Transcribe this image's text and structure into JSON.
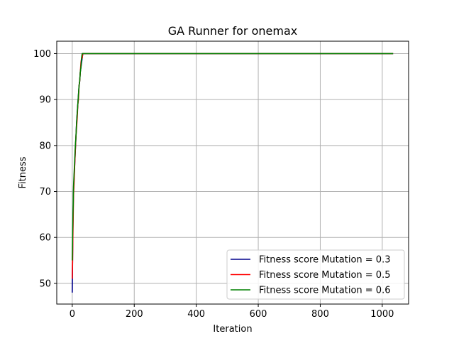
{
  "chart_data": {
    "type": "line",
    "title": "GA Runner for onemax",
    "xlabel": "Iteration",
    "ylabel": "Fitness",
    "xlim": [
      -50,
      1085
    ],
    "ylim": [
      45.5,
      102.7
    ],
    "xticks": [
      0,
      200,
      400,
      600,
      800,
      1000
    ],
    "yticks": [
      50,
      60,
      70,
      80,
      90,
      100
    ],
    "xtick_labels": [
      "0",
      "200",
      "400",
      "600",
      "800",
      "1000"
    ],
    "ytick_labels": [
      "50",
      "60",
      "70",
      "80",
      "90",
      "100"
    ],
    "grid": true,
    "legend_position": "lower-right",
    "series": [
      {
        "name": "Fitness score Mutation = 0.3",
        "color": "#00008b",
        "x": [
          0,
          1,
          2,
          3,
          4,
          6,
          8,
          10,
          12,
          14,
          16,
          18,
          20,
          22,
          24,
          26,
          28,
          30,
          32,
          34,
          1035
        ],
        "y": [
          48,
          55,
          62,
          66,
          70,
          73,
          76,
          79,
          82,
          85,
          87,
          89,
          91,
          93,
          94,
          96,
          97,
          98,
          99,
          100,
          100
        ]
      },
      {
        "name": "Fitness score Mutation = 0.5",
        "color": "#ff0000",
        "x": [
          0,
          1,
          2,
          3,
          4,
          6,
          8,
          10,
          12,
          14,
          16,
          18,
          20,
          22,
          24,
          26,
          28,
          30,
          32,
          34,
          1035
        ],
        "y": [
          51,
          55,
          60,
          64,
          69,
          72,
          76,
          79,
          82,
          84,
          86,
          89,
          90,
          93,
          94,
          96,
          98,
          99,
          99,
          100,
          100
        ]
      },
      {
        "name": "Fitness score Mutation = 0.6",
        "color": "#008000",
        "x": [
          0,
          1,
          2,
          3,
          4,
          6,
          8,
          10,
          12,
          14,
          16,
          18,
          20,
          22,
          24,
          26,
          28,
          30,
          32,
          34,
          1035
        ],
        "y": [
          55,
          60,
          64,
          67,
          71,
          74,
          77,
          80,
          82,
          85,
          87,
          89,
          91,
          93,
          94,
          96,
          97,
          99,
          100,
          100,
          100
        ]
      }
    ]
  }
}
